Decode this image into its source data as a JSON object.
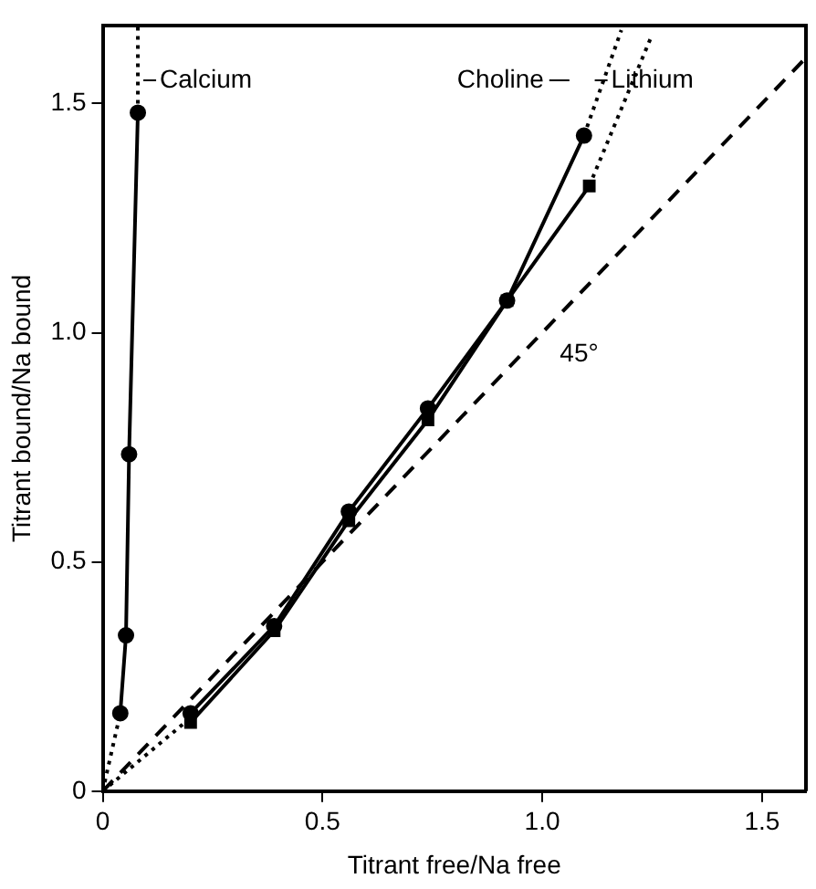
{
  "chart_data": {
    "type": "line",
    "xlabel": "Titrant free/Na free",
    "ylabel": "Titrant bound/Na bound",
    "xlim": [
      0,
      1.6
    ],
    "ylim": [
      0,
      1.67
    ],
    "xticks": [
      0,
      0.5,
      {
        "value": 1,
        "label": "1.0"
      },
      1.5
    ],
    "yticks": [
      0,
      0.5,
      {
        "value": 1,
        "label": "1.0"
      },
      1.5
    ],
    "grid": false,
    "legend": "top",
    "series": [
      {
        "name": "Calcium",
        "color": "#000000",
        "marker": "circle",
        "line_style": "solid",
        "x": [
          0.04,
          0.053,
          0.06,
          0.08
        ],
        "values": [
          0.17,
          0.34,
          0.735,
          1.48
        ]
      },
      {
        "color": "#000000",
        "marker": "none",
        "line_style": "dotted",
        "x": [
          0,
          0.04
        ],
        "values": [
          0,
          0.17
        ]
      },
      {
        "color": "#000000",
        "marker": "none",
        "line_style": "dotted",
        "x": [
          0.08,
          0.08
        ],
        "values": [
          1.48,
          1.67
        ]
      },
      {
        "name": "Choline",
        "color": "#000000",
        "marker": "circle",
        "line_style": "solid",
        "x": [
          0.2,
          0.39,
          0.56,
          0.74,
          0.92,
          1.095
        ],
        "values": [
          0.17,
          0.36,
          0.61,
          0.835,
          1.07,
          1.43
        ]
      },
      {
        "name": "Lithium",
        "color": "#000000",
        "marker": "square",
        "line_style": "solid",
        "x": [
          0.2,
          0.39,
          0.56,
          0.74,
          0.92,
          1.107
        ],
        "values": [
          0.15,
          0.35,
          0.59,
          0.81,
          1.07,
          1.32
        ]
      },
      {
        "color": "#000000",
        "marker": "none",
        "line_style": "dotted",
        "x": [
          0,
          0.2
        ],
        "values": [
          0,
          0.16
        ]
      },
      {
        "color": "#000000",
        "marker": "none",
        "line_style": "dotted",
        "x": [
          1.095,
          1.18
        ],
        "values": [
          1.43,
          1.66
        ]
      },
      {
        "color": "#000000",
        "marker": "none",
        "line_style": "dotted",
        "x": [
          1.107,
          1.25
        ],
        "values": [
          1.32,
          1.65
        ]
      },
      {
        "color": "#000000",
        "marker": "none",
        "line_style": "dashed",
        "x": [
          0,
          1.6
        ],
        "values": [
          0,
          1.6
        ]
      }
    ],
    "annotations": [
      "45°"
    ]
  }
}
